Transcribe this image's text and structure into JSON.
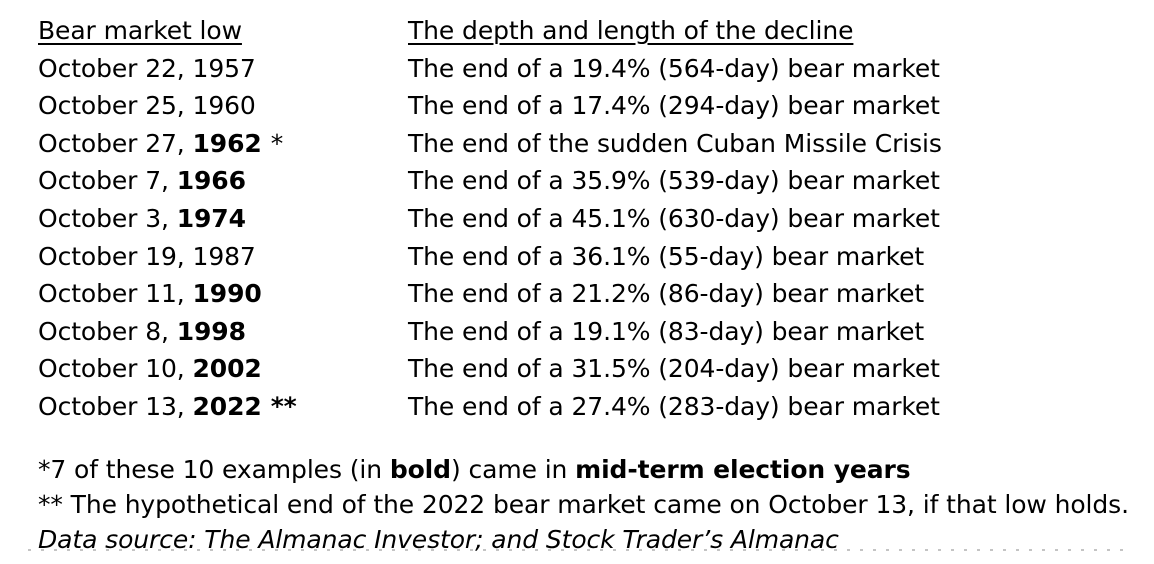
{
  "page": {
    "background": "#ffffff",
    "text_color": "#000000",
    "divider_color": "#b0b0b0"
  },
  "table": {
    "headers": [
      {
        "label": "Bear market low"
      },
      {
        "label": "The depth and length of the decline"
      }
    ],
    "rows": [
      {
        "date_prefix": "October 22,",
        "year": "1957",
        "year_bold": false,
        "marker": "",
        "marker_bold": false,
        "decline": "The end of a 19.4% (564-day) bear market"
      },
      {
        "date_prefix": "October 25,",
        "year": "1960",
        "year_bold": false,
        "marker": "",
        "marker_bold": false,
        "decline": "The end of a 17.4% (294-day) bear market"
      },
      {
        "date_prefix": "October 27,",
        "year": "1962",
        "year_bold": true,
        "marker": "*",
        "marker_bold": false,
        "decline": "The end of the sudden Cuban Missile Crisis"
      },
      {
        "date_prefix": "October 7,",
        "year": "1966",
        "year_bold": true,
        "marker": "",
        "marker_bold": false,
        "decline": "The end of a 35.9% (539-day) bear market"
      },
      {
        "date_prefix": "October 3,",
        "year": "1974",
        "year_bold": true,
        "marker": "",
        "marker_bold": false,
        "decline": "The end of a 45.1% (630-day) bear market"
      },
      {
        "date_prefix": "October 19,",
        "year": "1987",
        "year_bold": false,
        "marker": "",
        "marker_bold": false,
        "decline": "The end of a 36.1% (55-day) bear market"
      },
      {
        "date_prefix": "October 11,",
        "year": "1990",
        "year_bold": true,
        "marker": "",
        "marker_bold": false,
        "decline": "The end of a 21.2% (86-day) bear market"
      },
      {
        "date_prefix": "October 8,",
        "year": "1998",
        "year_bold": true,
        "marker": "",
        "marker_bold": false,
        "decline": "The end of a 19.1% (83-day) bear market"
      },
      {
        "date_prefix": "October 10,",
        "year": "2002",
        "year_bold": true,
        "marker": "",
        "marker_bold": false,
        "decline": "The end of a 31.5% (204-day) bear market"
      },
      {
        "date_prefix": "October 13,",
        "year": "2022",
        "year_bold": true,
        "marker": "**",
        "marker_bold": true,
        "decline": "The end of a 27.4% (283-day) bear market"
      }
    ]
  },
  "footnotes": {
    "lines": [
      {
        "italic": false,
        "segments": [
          {
            "text": "*7 of these 10 examples (in ",
            "bold": false
          },
          {
            "text": "bold",
            "bold": true
          },
          {
            "text": ") came in ",
            "bold": false
          },
          {
            "text": "mid-term election years",
            "bold": true
          }
        ]
      },
      {
        "italic": false,
        "segments": [
          {
            "text": "** The hypothetical end of the 2022 bear market came on October 13, if that low holds.",
            "bold": false
          }
        ]
      },
      {
        "italic": true,
        "segments": [
          {
            "text": "Data source: The Almanac Investor; and Stock Trader’s Almanac",
            "bold": false
          }
        ]
      }
    ]
  }
}
